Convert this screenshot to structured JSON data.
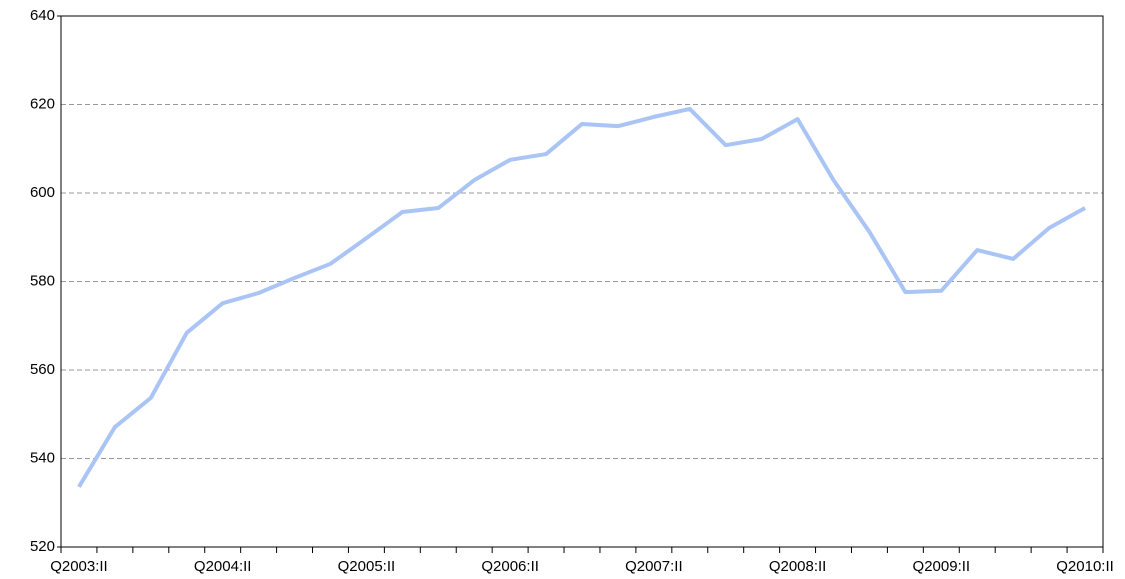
{
  "chart_data": {
    "type": "line",
    "categories": [
      "Q2003:II",
      null,
      null,
      null,
      "Q2004:II",
      null,
      null,
      null,
      "Q2005:II",
      null,
      null,
      null,
      "Q2006:II",
      null,
      null,
      null,
      "Q2007:II",
      null,
      null,
      null,
      "Q2008:II",
      null,
      null,
      null,
      "Q2009:II",
      null,
      null,
      null,
      "Q2010:II"
    ],
    "values": [
      533.6,
      547.1,
      553.7,
      568.4,
      575.1,
      577.4,
      580.8,
      584.0,
      589.8,
      595.7,
      596.6,
      602.9,
      607.5,
      608.8,
      615.6,
      615.1,
      617.2,
      619.0,
      610.8,
      612.2,
      616.7,
      602.9,
      591.2,
      577.6,
      577.9,
      587.1,
      585.1,
      592.1,
      596.6
    ],
    "color": "#a9c4f5",
    "ylim": [
      520,
      640
    ],
    "yticks": [
      520,
      540,
      560,
      580,
      600,
      620,
      640
    ],
    "grid": true
  }
}
